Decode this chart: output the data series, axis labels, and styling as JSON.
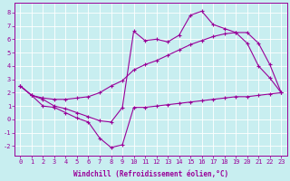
{
  "xlabel": "Windchill (Refroidissement éolien,°C)",
  "bg_color": "#c8eef0",
  "line_color": "#990099",
  "grid_color": "#ffffff",
  "xlim": [
    -0.5,
    23.5
  ],
  "ylim": [
    -2.7,
    8.7
  ],
  "yticks": [
    -2,
    -1,
    0,
    1,
    2,
    3,
    4,
    5,
    6,
    7,
    8
  ],
  "xticks": [
    0,
    1,
    2,
    3,
    4,
    5,
    6,
    7,
    8,
    9,
    10,
    11,
    12,
    13,
    14,
    15,
    16,
    17,
    18,
    19,
    20,
    21,
    22,
    23
  ],
  "series_bottom_x": [
    0,
    1,
    2,
    3,
    4,
    5,
    6,
    7,
    8,
    9,
    10,
    11,
    12,
    13,
    14,
    15,
    16,
    17,
    18,
    19,
    20,
    21,
    22,
    23
  ],
  "series_bottom_y": [
    2.5,
    1.8,
    1.0,
    0.9,
    0.5,
    0.1,
    -0.2,
    -1.4,
    -2.1,
    -1.9,
    0.9,
    0.9,
    1.0,
    1.1,
    1.2,
    1.3,
    1.4,
    1.5,
    1.6,
    1.7,
    1.7,
    1.8,
    1.9,
    2.0
  ],
  "series_top_x": [
    0,
    1,
    2,
    3,
    4,
    5,
    6,
    7,
    8,
    9,
    10,
    11,
    12,
    13,
    14,
    15,
    16,
    17,
    18,
    19,
    20,
    21,
    22,
    23
  ],
  "series_top_y": [
    2.5,
    1.8,
    1.5,
    1.0,
    0.8,
    0.5,
    0.2,
    -0.1,
    -0.2,
    0.9,
    6.6,
    5.9,
    6.0,
    5.8,
    6.3,
    7.8,
    8.1,
    7.1,
    6.8,
    6.5,
    5.7,
    4.0,
    3.1,
    2.0
  ],
  "series_mid_x": [
    0,
    1,
    2,
    3,
    4,
    5,
    6,
    7,
    8,
    9,
    10,
    11,
    12,
    13,
    14,
    15,
    16,
    17,
    18,
    19,
    20,
    21,
    22,
    23
  ],
  "series_mid_y": [
    2.5,
    1.8,
    1.6,
    1.5,
    1.5,
    1.6,
    1.7,
    2.0,
    2.5,
    2.9,
    3.7,
    4.1,
    4.4,
    4.8,
    5.2,
    5.6,
    5.9,
    6.2,
    6.4,
    6.5,
    6.5,
    5.7,
    4.1,
    2.0
  ],
  "tick_fontsize": 5,
  "xlabel_fontsize": 5.5
}
